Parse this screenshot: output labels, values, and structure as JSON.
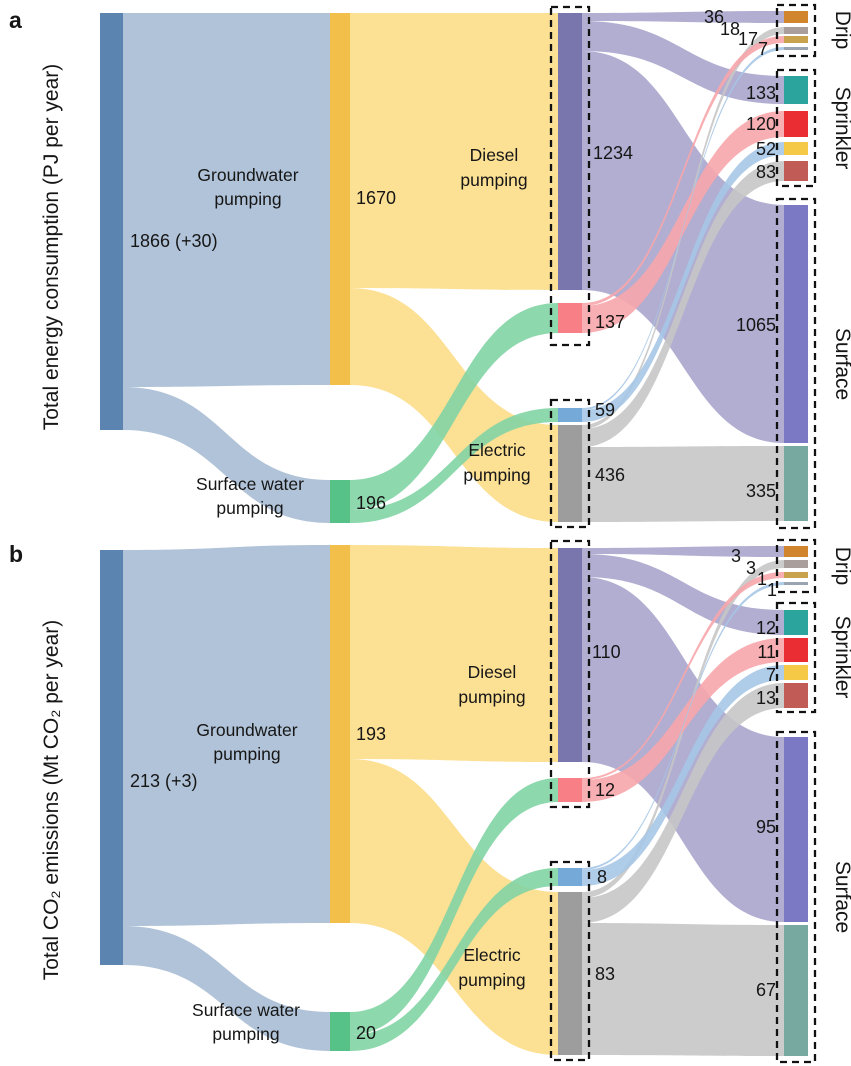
{
  "panels": {
    "a": {
      "letter": "a",
      "axis_label": "Total energy consumption (PJ per year)",
      "total_label": "1866 (+30)",
      "groundwater": {
        "line1": "Groundwater",
        "line2": "pumping",
        "value": "1670"
      },
      "surface_water": {
        "line1": "Surface water",
        "line2": "pumping",
        "value": "196"
      },
      "diesel": {
        "line1": "Diesel",
        "line2": "pumping"
      },
      "electric": {
        "line1": "Electric",
        "line2": "pumping"
      },
      "mid": {
        "purple": "1234",
        "red": "137",
        "blue": "59",
        "gray": "436"
      },
      "drip": {
        "label": "Drip",
        "values": [
          "36",
          "18",
          "17",
          "7"
        ]
      },
      "sprinkler": {
        "label": "Sprinkler",
        "values": [
          "133",
          "120",
          "52",
          "83"
        ]
      },
      "surface": {
        "label": "Surface",
        "values": [
          "1065",
          "335"
        ]
      }
    },
    "b": {
      "letter": "b",
      "axis_label": "Total CO₂ emissions (Mt CO₂ per year)",
      "total_label": "213 (+3)",
      "groundwater": {
        "line1": "Groundwater",
        "line2": "pumping",
        "value": "193"
      },
      "surface_water": {
        "line1": "Surface water",
        "line2": "pumping",
        "value": "20"
      },
      "diesel": {
        "line1": "Diesel",
        "line2": "pumping"
      },
      "electric": {
        "line1": "Electric",
        "line2": "pumping"
      },
      "mid": {
        "purple": "110",
        "red": "12",
        "blue": "8",
        "gray": "83"
      },
      "drip": {
        "label": "Drip",
        "values": [
          "3",
          "3",
          "1",
          "1"
        ]
      },
      "sprinkler": {
        "label": "Sprinkler",
        "values": [
          "12",
          "11",
          "7",
          "13"
        ]
      },
      "surface": {
        "label": "Surface",
        "values": [
          "95",
          "67"
        ]
      }
    }
  },
  "colors": {
    "node_total": "#5b84b0",
    "node_gold": "#f2c04a",
    "node_green": "#57c287",
    "node_purple": "#7976ad",
    "node_red": "#f87f85",
    "node_blue": "#74a9d8",
    "node_gray": "#9d9d9d",
    "node_drip1": "#d1862e",
    "node_drip2": "#a99e9c",
    "node_drip3": "#c8a24c",
    "node_drip4": "#99a4b0",
    "node_spr1": "#2ba49e",
    "node_spr2": "#ea2d33",
    "node_spr3": "#f5c845",
    "node_spr4": "#c15b56",
    "node_surf1": "#7b79c4",
    "node_surf2": "#78a9a1",
    "flow_water": "#a9bdd4",
    "flow_gold": "#fcdd88",
    "flow_green": "#82d4a4",
    "flow_purple": "#a8a5cc",
    "flow_gray": "#c7c7c7",
    "flow_red": "#f7a6ab",
    "flow_blue": "#a6c7e7",
    "text": "#161616"
  },
  "chart_data": [
    {
      "type": "sankey",
      "panel": "a",
      "title": "Total energy consumption (PJ per year)",
      "unit": "PJ per year",
      "total": {
        "label": "1866 (+30)",
        "value": 1866,
        "projected_increase": 30
      },
      "nodes": [
        {
          "id": "total",
          "label": "1866 (+30)",
          "value": 1866
        },
        {
          "id": "groundwater_pumping",
          "label": "Groundwater pumping",
          "value": 1670
        },
        {
          "id": "surface_water_pumping",
          "label": "Surface water pumping",
          "value": 196
        },
        {
          "id": "diesel_pumping_groundwater",
          "group": "Diesel pumping",
          "value": 1234
        },
        {
          "id": "diesel_pumping_surface_water",
          "group": "Diesel pumping",
          "value": 137
        },
        {
          "id": "electric_pumping_surface_water",
          "group": "Electric pumping",
          "value": 59
        },
        {
          "id": "electric_pumping_groundwater",
          "group": "Electric pumping",
          "value": 436
        },
        {
          "id": "drip_1",
          "group": "Drip",
          "value": 36
        },
        {
          "id": "drip_2",
          "group": "Drip",
          "value": 18
        },
        {
          "id": "drip_3",
          "group": "Drip",
          "value": 17
        },
        {
          "id": "drip_4",
          "group": "Drip",
          "value": 7
        },
        {
          "id": "sprinkler_1",
          "group": "Sprinkler",
          "value": 133
        },
        {
          "id": "sprinkler_2",
          "group": "Sprinkler",
          "value": 120
        },
        {
          "id": "sprinkler_3",
          "group": "Sprinkler",
          "value": 52
        },
        {
          "id": "sprinkler_4",
          "group": "Sprinkler",
          "value": 83
        },
        {
          "id": "surface_1",
          "group": "Surface",
          "value": 1065
        },
        {
          "id": "surface_2",
          "group": "Surface",
          "value": 335
        }
      ],
      "links": [
        {
          "source": "total",
          "target": "groundwater_pumping",
          "value": 1670
        },
        {
          "source": "total",
          "target": "surface_water_pumping",
          "value": 196
        },
        {
          "source": "groundwater_pumping",
          "target": "diesel_pumping_groundwater",
          "value": 1234
        },
        {
          "source": "groundwater_pumping",
          "target": "electric_pumping_groundwater",
          "value": 436
        },
        {
          "source": "surface_water_pumping",
          "target": "diesel_pumping_surface_water",
          "value": 137
        },
        {
          "source": "surface_water_pumping",
          "target": "electric_pumping_surface_water",
          "value": 59
        },
        {
          "source": "diesel_pumping_groundwater",
          "target": "drip_1",
          "value": 36
        },
        {
          "source": "diesel_pumping_groundwater",
          "target": "sprinkler_1",
          "value": 133
        },
        {
          "source": "diesel_pumping_groundwater",
          "target": "surface_1",
          "value": 1065
        },
        {
          "source": "electric_pumping_groundwater",
          "target": "drip_2",
          "value": 18
        },
        {
          "source": "electric_pumping_groundwater",
          "target": "sprinkler_4",
          "value": 83
        },
        {
          "source": "electric_pumping_groundwater",
          "target": "surface_2",
          "value": 335
        },
        {
          "source": "diesel_pumping_surface_water",
          "target": "drip_3",
          "value": 17
        },
        {
          "source": "diesel_pumping_surface_water",
          "target": "sprinkler_2",
          "value": 120
        },
        {
          "source": "electric_pumping_surface_water",
          "target": "drip_4",
          "value": 7
        },
        {
          "source": "electric_pumping_surface_water",
          "target": "sprinkler_3",
          "value": 52
        }
      ]
    },
    {
      "type": "sankey",
      "panel": "b",
      "title": "Total CO₂ emissions (Mt CO₂ per year)",
      "unit": "Mt CO₂ per year",
      "total": {
        "label": "213 (+3)",
        "value": 213,
        "projected_increase": 3
      },
      "nodes": [
        {
          "id": "total",
          "label": "213 (+3)",
          "value": 213
        },
        {
          "id": "groundwater_pumping",
          "label": "Groundwater pumping",
          "value": 193
        },
        {
          "id": "surface_water_pumping",
          "label": "Surface water pumping",
          "value": 20
        },
        {
          "id": "diesel_pumping_groundwater",
          "group": "Diesel pumping",
          "value": 110
        },
        {
          "id": "diesel_pumping_surface_water",
          "group": "Diesel pumping",
          "value": 12
        },
        {
          "id": "electric_pumping_surface_water",
          "group": "Electric pumping",
          "value": 8
        },
        {
          "id": "electric_pumping_groundwater",
          "group": "Electric pumping",
          "value": 83
        },
        {
          "id": "drip_1",
          "group": "Drip",
          "value": 3
        },
        {
          "id": "drip_2",
          "group": "Drip",
          "value": 3
        },
        {
          "id": "drip_3",
          "group": "Drip",
          "value": 1
        },
        {
          "id": "drip_4",
          "group": "Drip",
          "value": 1
        },
        {
          "id": "sprinkler_1",
          "group": "Sprinkler",
          "value": 12
        },
        {
          "id": "sprinkler_2",
          "group": "Sprinkler",
          "value": 11
        },
        {
          "id": "sprinkler_3",
          "group": "Sprinkler",
          "value": 7
        },
        {
          "id": "sprinkler_4",
          "group": "Sprinkler",
          "value": 13
        },
        {
          "id": "surface_1",
          "group": "Surface",
          "value": 95
        },
        {
          "id": "surface_2",
          "group": "Surface",
          "value": 67
        }
      ],
      "links": [
        {
          "source": "total",
          "target": "groundwater_pumping",
          "value": 193
        },
        {
          "source": "total",
          "target": "surface_water_pumping",
          "value": 20
        },
        {
          "source": "groundwater_pumping",
          "target": "diesel_pumping_groundwater",
          "value": 110
        },
        {
          "source": "groundwater_pumping",
          "target": "electric_pumping_groundwater",
          "value": 83
        },
        {
          "source": "surface_water_pumping",
          "target": "diesel_pumping_surface_water",
          "value": 12
        },
        {
          "source": "surface_water_pumping",
          "target": "electric_pumping_surface_water",
          "value": 8
        },
        {
          "source": "diesel_pumping_groundwater",
          "target": "drip_1",
          "value": 3
        },
        {
          "source": "diesel_pumping_groundwater",
          "target": "sprinkler_1",
          "value": 12
        },
        {
          "source": "diesel_pumping_groundwater",
          "target": "surface_1",
          "value": 95
        },
        {
          "source": "electric_pumping_groundwater",
          "target": "drip_2",
          "value": 3
        },
        {
          "source": "electric_pumping_groundwater",
          "target": "sprinkler_4",
          "value": 13
        },
        {
          "source": "electric_pumping_groundwater",
          "target": "surface_2",
          "value": 67
        },
        {
          "source": "diesel_pumping_surface_water",
          "target": "drip_3",
          "value": 1
        },
        {
          "source": "diesel_pumping_surface_water",
          "target": "sprinkler_2",
          "value": 11
        },
        {
          "source": "electric_pumping_surface_water",
          "target": "drip_4",
          "value": 1
        },
        {
          "source": "electric_pumping_surface_water",
          "target": "sprinkler_3",
          "value": 7
        }
      ]
    }
  ]
}
